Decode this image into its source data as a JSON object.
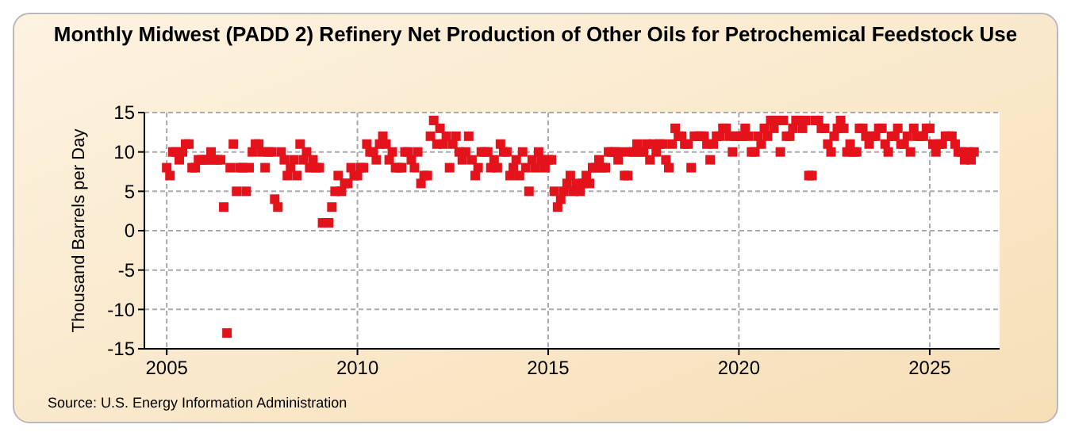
{
  "chart_data": {
    "type": "scatter",
    "title": "Monthly Midwest (PADD 2) Refinery Net Production of Other Oils for Petrochemical Feedstock Use",
    "ylabel": "Thousand Barrels per Day",
    "annotations": [
      "Source: U.S. Energy Information Administration"
    ],
    "marker": "square",
    "grid": true,
    "xlim": [
      "2004-06",
      "2026-11"
    ],
    "xticks": [
      "2005",
      "2010",
      "2015",
      "2020",
      "2025"
    ],
    "ylim": [
      -15,
      15
    ],
    "yticks": [
      -15,
      -10,
      -5,
      0,
      5,
      10,
      15
    ],
    "series": [
      {
        "color": "#e3121b",
        "x": [
          "2005-01",
          "2005-02",
          "2005-03",
          "2005-04",
          "2005-05",
          "2005-06",
          "2005-07",
          "2005-08",
          "2005-09",
          "2005-10",
          "2005-11",
          "2005-12",
          "2006-01",
          "2006-02",
          "2006-03",
          "2006-04",
          "2006-05",
          "2006-06",
          "2006-07",
          "2006-08",
          "2006-09",
          "2006-10",
          "2006-11",
          "2006-12",
          "2007-01",
          "2007-02",
          "2007-03",
          "2007-04",
          "2007-05",
          "2007-06",
          "2007-07",
          "2007-08",
          "2007-09",
          "2007-10",
          "2007-11",
          "2007-12",
          "2008-01",
          "2008-02",
          "2008-03",
          "2008-04",
          "2008-05",
          "2008-06",
          "2008-07",
          "2008-08",
          "2008-09",
          "2008-10",
          "2008-11",
          "2008-12",
          "2009-01",
          "2009-02",
          "2009-03",
          "2009-04",
          "2009-05",
          "2009-06",
          "2009-07",
          "2009-08",
          "2009-09",
          "2009-10",
          "2009-11",
          "2009-12",
          "2010-01",
          "2010-02",
          "2010-03",
          "2010-04",
          "2010-05",
          "2010-06",
          "2010-07",
          "2010-08",
          "2010-09",
          "2010-10",
          "2010-11",
          "2010-12",
          "2011-01",
          "2011-02",
          "2011-03",
          "2011-04",
          "2011-05",
          "2011-06",
          "2011-07",
          "2011-08",
          "2011-09",
          "2011-10",
          "2011-11",
          "2011-12",
          "2012-01",
          "2012-02",
          "2012-03",
          "2012-04",
          "2012-05",
          "2012-06",
          "2012-07",
          "2012-08",
          "2012-09",
          "2012-10",
          "2012-11",
          "2012-12",
          "2013-01",
          "2013-02",
          "2013-03",
          "2013-04",
          "2013-05",
          "2013-06",
          "2013-07",
          "2013-08",
          "2013-09",
          "2013-10",
          "2013-11",
          "2013-12",
          "2014-01",
          "2014-02",
          "2014-03",
          "2014-04",
          "2014-05",
          "2014-06",
          "2014-07",
          "2014-08",
          "2014-09",
          "2014-10",
          "2014-11",
          "2014-12",
          "2015-01",
          "2015-02",
          "2015-03",
          "2015-04",
          "2015-05",
          "2015-06",
          "2015-07",
          "2015-08",
          "2015-09",
          "2015-10",
          "2015-11",
          "2015-12",
          "2016-01",
          "2016-02",
          "2016-03",
          "2016-04",
          "2016-05",
          "2016-06",
          "2016-07",
          "2016-08",
          "2016-09",
          "2016-10",
          "2016-11",
          "2016-12",
          "2017-01",
          "2017-02",
          "2017-03",
          "2017-04",
          "2017-05",
          "2017-06",
          "2017-07",
          "2017-08",
          "2017-09",
          "2017-10",
          "2017-11",
          "2017-12",
          "2018-01",
          "2018-02",
          "2018-03",
          "2018-04",
          "2018-05",
          "2018-06",
          "2018-07",
          "2018-08",
          "2018-09",
          "2018-10",
          "2018-11",
          "2018-12",
          "2019-01",
          "2019-02",
          "2019-03",
          "2019-04",
          "2019-05",
          "2019-06",
          "2019-07",
          "2019-08",
          "2019-09",
          "2019-10",
          "2019-11",
          "2019-12",
          "2020-01",
          "2020-02",
          "2020-03",
          "2020-04",
          "2020-05",
          "2020-06",
          "2020-07",
          "2020-08",
          "2020-09",
          "2020-10",
          "2020-11",
          "2020-12",
          "2021-01",
          "2021-02",
          "2021-03",
          "2021-04",
          "2021-05",
          "2021-06",
          "2021-07",
          "2021-08",
          "2021-09",
          "2021-10",
          "2021-11",
          "2021-12",
          "2022-01",
          "2022-02",
          "2022-03",
          "2022-04",
          "2022-05",
          "2022-06",
          "2022-07",
          "2022-08",
          "2022-09",
          "2022-10",
          "2022-11",
          "2022-12",
          "2023-01",
          "2023-02",
          "2023-03",
          "2023-04",
          "2023-05",
          "2023-06",
          "2023-07",
          "2023-08",
          "2023-09",
          "2023-10",
          "2023-11",
          "2023-12",
          "2024-01",
          "2024-02",
          "2024-03",
          "2024-04",
          "2024-05",
          "2024-06",
          "2024-07",
          "2024-08",
          "2024-09",
          "2024-10",
          "2024-11",
          "2024-12",
          "2025-01",
          "2025-02",
          "2025-03",
          "2025-04",
          "2025-05",
          "2025-06",
          "2025-07",
          "2025-08",
          "2025-09",
          "2025-10",
          "2025-11",
          "2025-12",
          "2026-01",
          "2026-02",
          "2026-03"
        ],
        "values": [
          8,
          7,
          10,
          10,
          9,
          10,
          11,
          11,
          8,
          8,
          9,
          9,
          9,
          9,
          10,
          9,
          9,
          9,
          3,
          -13,
          8,
          11,
          5,
          8,
          8,
          5,
          8,
          10,
          11,
          11,
          10,
          8,
          10,
          10,
          4,
          3,
          10,
          9,
          7,
          8,
          9,
          7,
          11,
          9,
          10,
          8,
          9,
          8,
          8,
          1,
          1,
          1,
          3,
          5,
          7,
          5,
          6,
          6,
          8,
          7,
          7,
          8,
          8,
          11,
          10,
          10,
          9,
          11,
          12,
          11,
          9,
          10,
          8,
          8,
          8,
          10,
          10,
          9,
          8,
          10,
          6,
          7,
          7,
          12,
          14,
          11,
          13,
          11,
          12,
          8,
          11,
          12,
          10,
          9,
          10,
          12,
          9,
          7,
          8,
          10,
          10,
          10,
          8,
          9,
          8,
          11,
          10,
          10,
          7,
          8,
          9,
          7,
          10,
          8,
          5,
          9,
          8,
          10,
          9,
          8,
          9,
          9,
          5,
          3,
          4,
          5,
          6,
          7,
          5,
          6,
          5,
          6,
          7,
          6,
          8,
          8,
          9,
          8,
          8,
          10,
          10,
          10,
          9,
          10,
          7,
          7,
          10,
          10,
          11,
          10,
          10,
          11,
          9,
          11,
          10,
          11,
          11,
          9,
          8,
          11,
          13,
          12,
          12,
          11,
          11,
          8,
          12,
          12,
          12,
          12,
          11,
          9,
          11,
          12,
          12,
          13,
          13,
          12,
          10,
          12,
          12,
          12,
          13,
          12,
          10,
          10,
          12,
          11,
          13,
          12,
          14,
          13,
          14,
          10,
          14,
          12,
          12,
          13,
          14,
          14,
          13,
          14,
          7,
          7,
          14,
          14,
          13,
          13,
          11,
          10,
          12,
          13,
          14,
          13,
          10,
          11,
          10,
          10,
          13,
          13,
          12,
          11,
          12,
          12,
          13,
          13,
          11,
          10,
          12,
          12,
          13,
          11,
          11,
          12,
          10,
          13,
          12,
          12,
          12,
          13,
          13,
          11,
          10,
          11,
          11,
          12,
          12,
          12,
          11,
          10,
          10,
          9,
          10,
          9,
          10
        ]
      }
    ]
  }
}
